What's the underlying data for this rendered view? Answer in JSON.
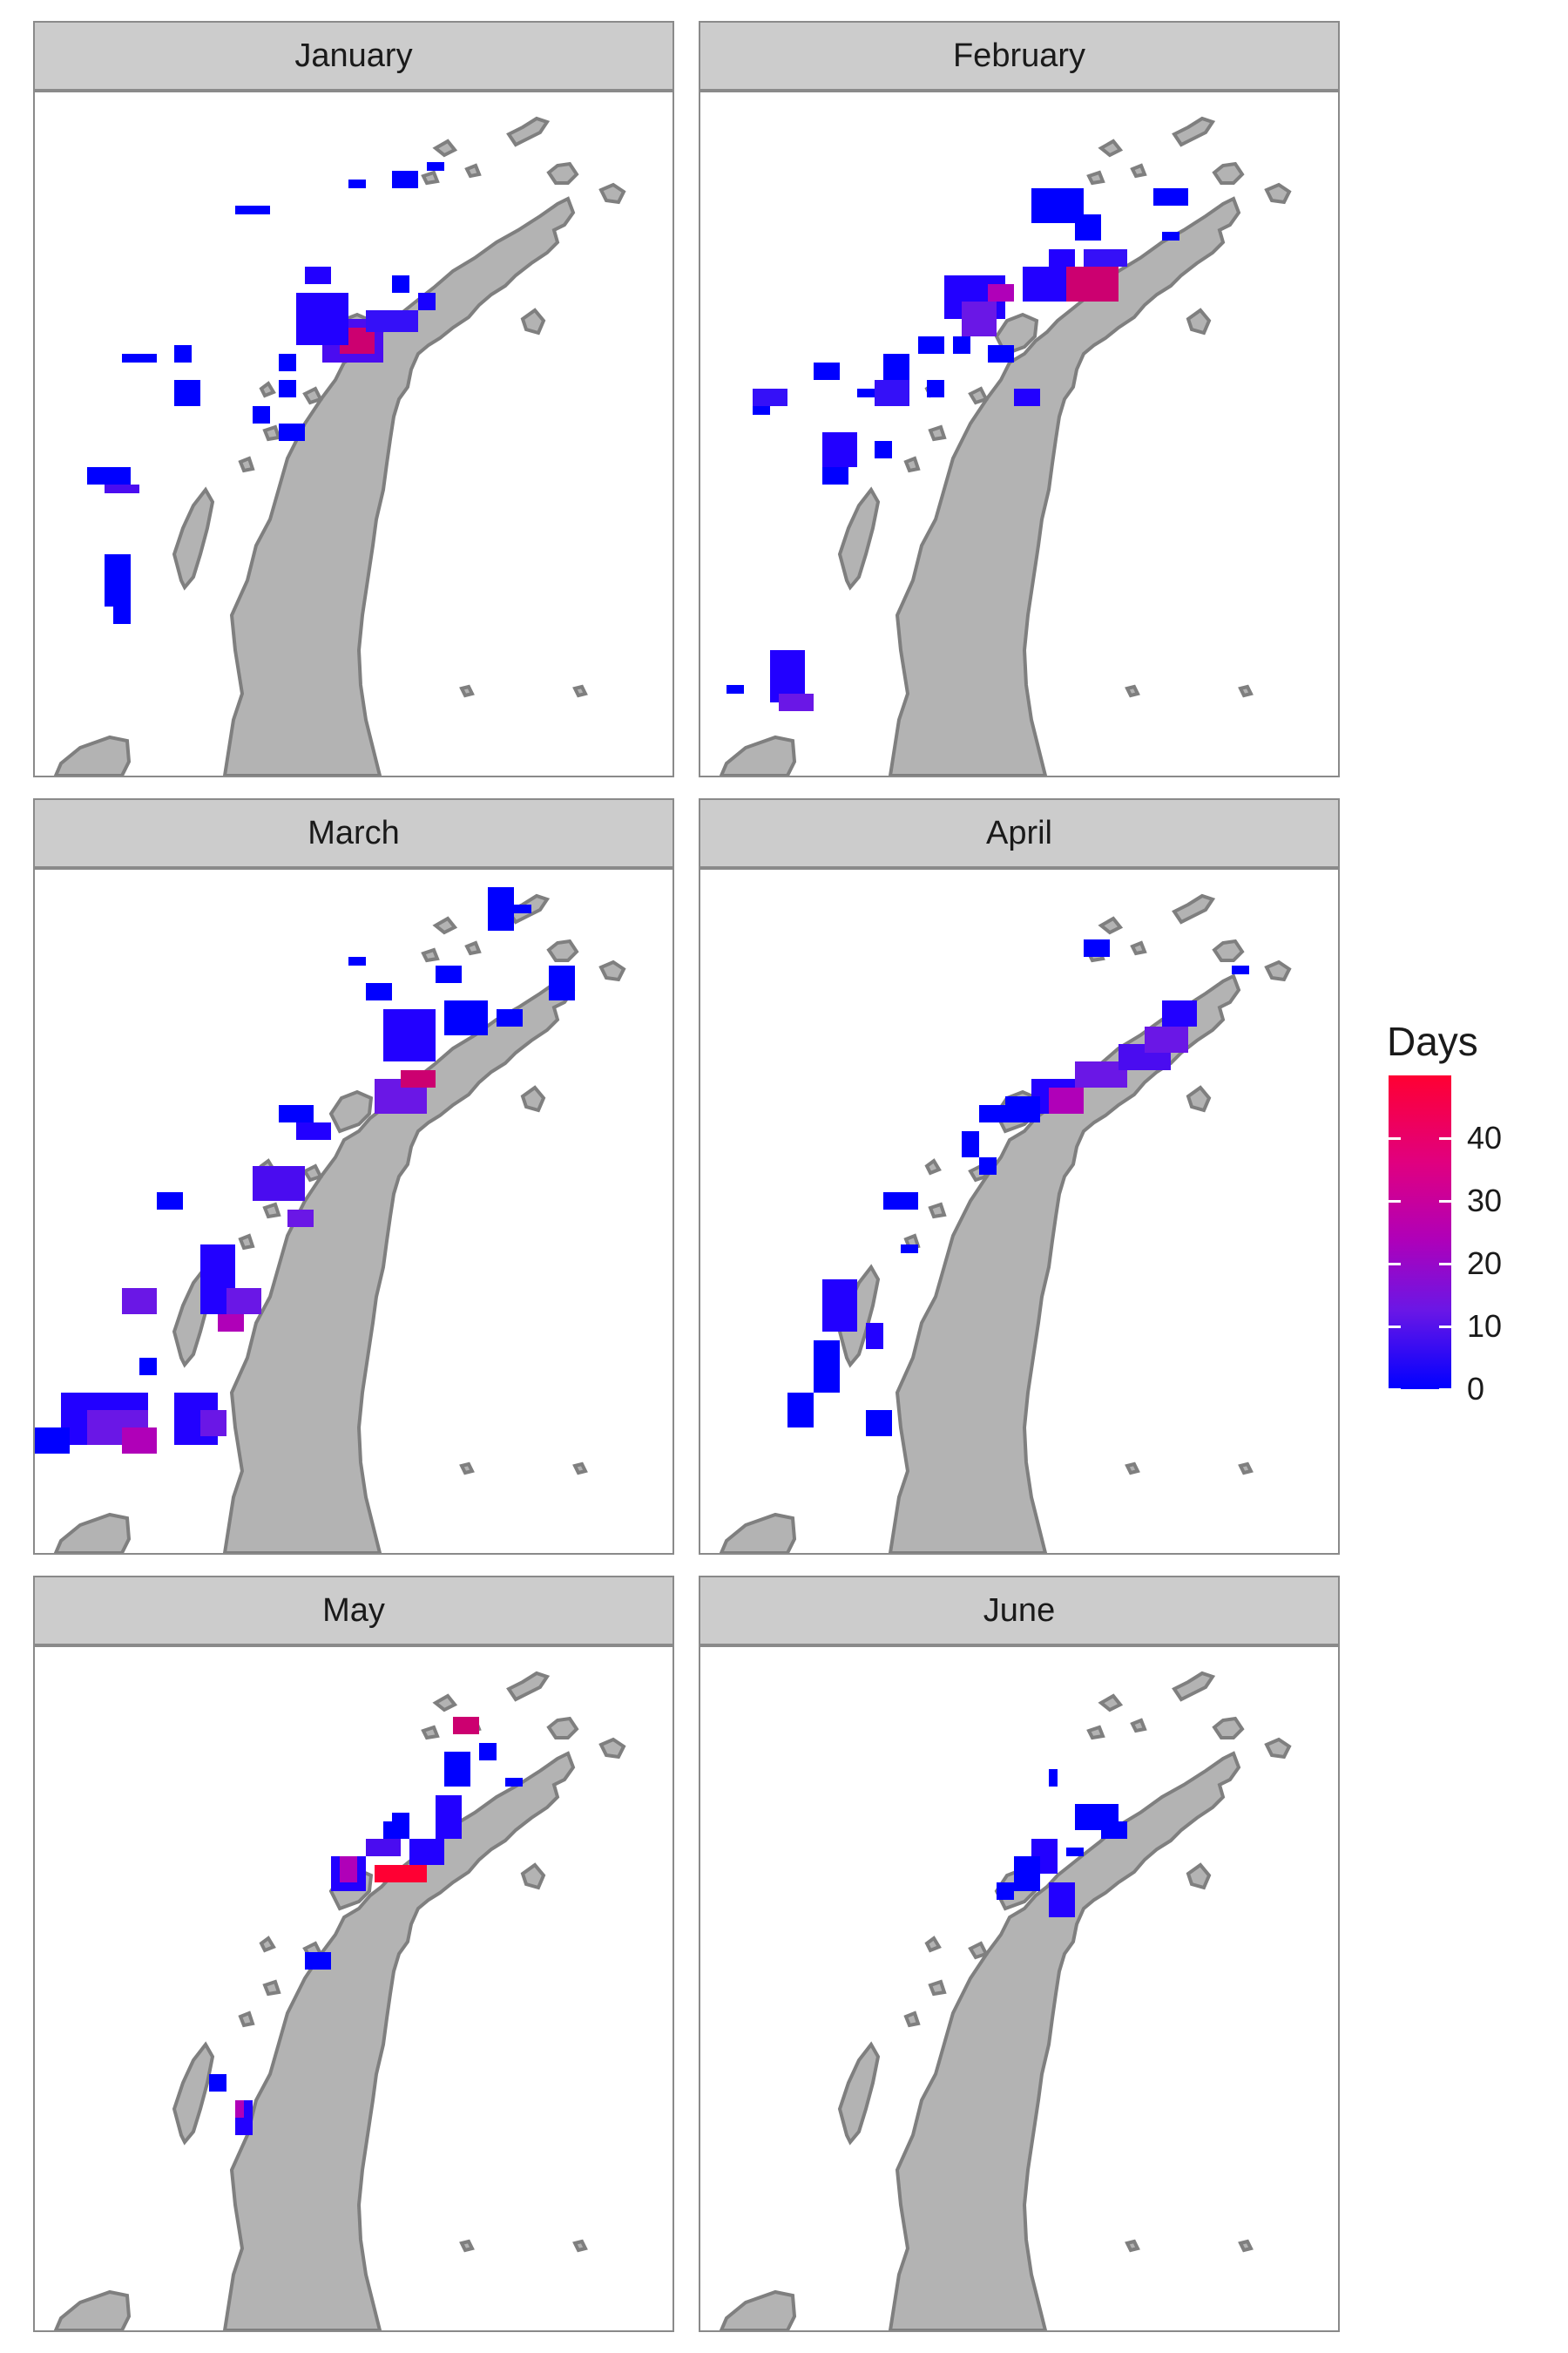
{
  "panels": [
    {
      "label": "January"
    },
    {
      "label": "February"
    },
    {
      "label": "March"
    },
    {
      "label": "April"
    },
    {
      "label": "May"
    },
    {
      "label": "June"
    }
  ],
  "legend": {
    "title": "Days",
    "ticks": [
      "40",
      "30",
      "20",
      "10",
      "0"
    ],
    "tick_values": [
      40,
      30,
      20,
      10,
      0
    ],
    "range": [
      0,
      50
    ],
    "colors": {
      "low": "#0000ff",
      "mid": "#b000b8",
      "high": "#ff0033"
    }
  },
  "map": {
    "land_color": "#b3b3b3",
    "coast_color": "#7f7f7f"
  }
}
